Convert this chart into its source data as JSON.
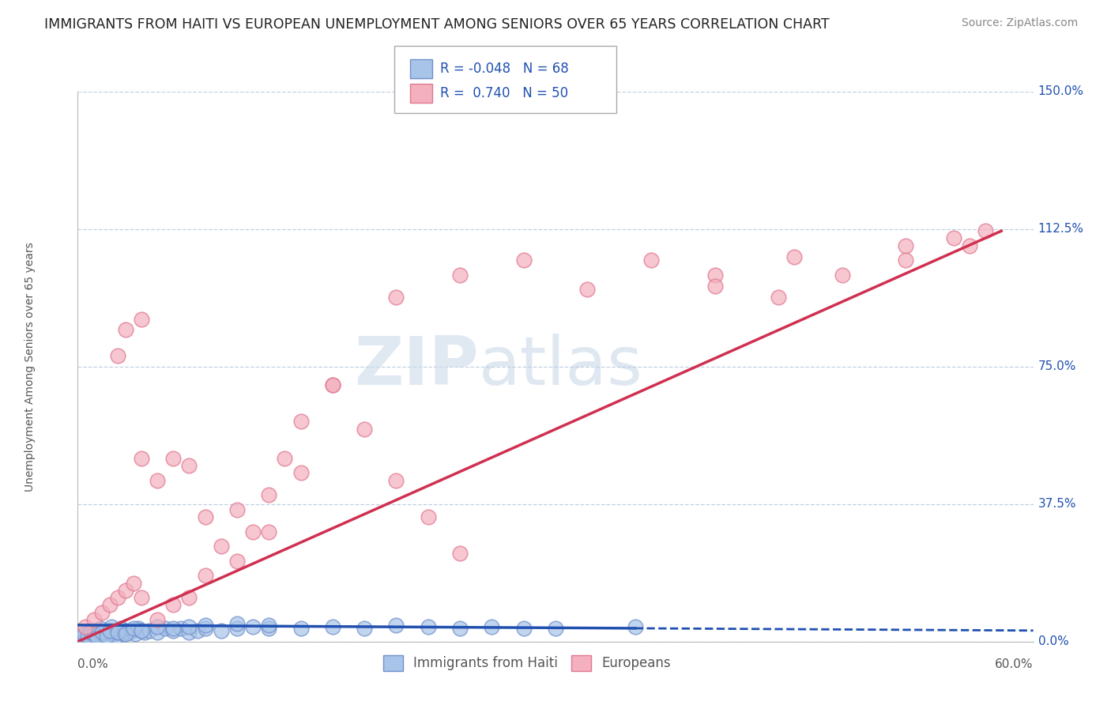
{
  "title": "IMMIGRANTS FROM HAITI VS EUROPEAN UNEMPLOYMENT AMONG SENIORS OVER 65 YEARS CORRELATION CHART",
  "source": "Source: ZipAtlas.com",
  "xlabel_bottom_left": "0.0%",
  "xlabel_bottom_right": "60.0%",
  "ylabel": "Unemployment Among Seniors over 65 years",
  "yticks": [
    "0.0%",
    "37.5%",
    "75.0%",
    "112.5%",
    "150.0%"
  ],
  "ytick_vals": [
    0.0,
    37.5,
    75.0,
    112.5,
    150.0
  ],
  "xmin": 0.0,
  "xmax": 60.0,
  "ymin": 0.0,
  "ymax": 150.0,
  "legend_r1": "-0.048",
  "legend_n1": "68",
  "legend_r2": "0.740",
  "legend_n2": "50",
  "blue_color": "#a8c4e8",
  "pink_color": "#f4b0be",
  "blue_edge_color": "#7090cc",
  "pink_edge_color": "#e07890",
  "blue_line_color": "#2050b0",
  "pink_line_color": "#d03050",
  "blue_scatter_x": [
    0.3,
    0.5,
    0.7,
    0.9,
    1.0,
    1.1,
    1.2,
    1.3,
    1.4,
    1.5,
    1.6,
    1.7,
    1.8,
    2.0,
    2.1,
    2.2,
    2.3,
    2.4,
    2.5,
    2.7,
    2.9,
    3.0,
    3.2,
    3.4,
    3.6,
    3.8,
    4.0,
    4.2,
    4.5,
    5.0,
    5.5,
    6.0,
    6.5,
    7.0,
    7.5,
    8.0,
    9.0,
    10.0,
    11.0,
    12.0,
    14.0,
    16.0,
    18.0,
    20.0,
    22.0,
    24.0,
    26.0,
    28.0,
    30.0,
    35.0,
    0.4,
    0.6,
    0.8,
    1.0,
    1.2,
    1.5,
    1.8,
    2.0,
    2.5,
    3.0,
    3.5,
    4.0,
    5.0,
    6.0,
    7.0,
    8.0,
    10.0,
    12.0
  ],
  "blue_scatter_y": [
    1.5,
    2.0,
    1.0,
    2.5,
    1.5,
    3.0,
    2.0,
    1.5,
    3.5,
    2.5,
    2.0,
    1.5,
    3.0,
    2.5,
    4.0,
    2.0,
    3.0,
    1.5,
    2.5,
    3.5,
    2.0,
    3.0,
    2.5,
    3.0,
    2.0,
    3.5,
    3.0,
    2.5,
    3.0,
    2.5,
    3.5,
    3.0,
    3.5,
    2.5,
    3.0,
    3.5,
    3.0,
    3.5,
    4.0,
    3.5,
    3.5,
    4.0,
    3.5,
    4.5,
    4.0,
    3.5,
    4.0,
    3.5,
    3.5,
    4.0,
    2.0,
    1.5,
    2.5,
    2.0,
    1.0,
    2.5,
    1.5,
    3.0,
    2.5,
    2.0,
    3.5,
    3.0,
    4.0,
    3.5,
    4.0,
    4.5,
    5.0,
    4.5
  ],
  "pink_scatter_x": [
    0.5,
    1.0,
    1.5,
    2.0,
    2.5,
    3.0,
    3.5,
    4.0,
    4.0,
    5.0,
    6.0,
    7.0,
    8.0,
    9.0,
    10.0,
    11.0,
    12.0,
    13.0,
    14.0,
    16.0,
    18.0,
    20.0,
    22.0,
    24.0,
    40.0,
    45.0,
    48.0,
    52.0,
    55.0,
    57.0,
    2.5,
    3.0,
    4.0,
    5.0,
    6.0,
    7.0,
    8.0,
    10.0,
    12.0,
    14.0,
    16.0,
    20.0,
    24.0,
    28.0,
    32.0,
    36.0,
    40.0,
    44.0,
    52.0,
    56.0
  ],
  "pink_scatter_y": [
    4.0,
    6.0,
    8.0,
    10.0,
    12.0,
    14.0,
    16.0,
    12.0,
    88.0,
    6.0,
    10.0,
    12.0,
    18.0,
    26.0,
    22.0,
    30.0,
    40.0,
    50.0,
    60.0,
    70.0,
    58.0,
    44.0,
    34.0,
    24.0,
    100.0,
    105.0,
    100.0,
    108.0,
    110.0,
    112.0,
    78.0,
    85.0,
    50.0,
    44.0,
    50.0,
    48.0,
    34.0,
    36.0,
    30.0,
    46.0,
    70.0,
    94.0,
    100.0,
    104.0,
    96.0,
    104.0,
    97.0,
    94.0,
    104.0,
    108.0
  ],
  "blue_line_x": [
    0.0,
    60.0
  ],
  "blue_line_y": [
    4.5,
    3.0
  ],
  "blue_dash_start": 35.0,
  "pink_line_x": [
    0.0,
    58.0
  ],
  "pink_line_y": [
    0.0,
    112.0
  ],
  "watermark_zip": "ZIP",
  "watermark_atlas": "atlas",
  "background_color": "#ffffff",
  "grid_color": "#c0d0e0",
  "title_fontsize": 12.5,
  "source_fontsize": 10,
  "ylabel_fontsize": 10,
  "legend_fontsize": 12,
  "tick_label_fontsize": 11
}
